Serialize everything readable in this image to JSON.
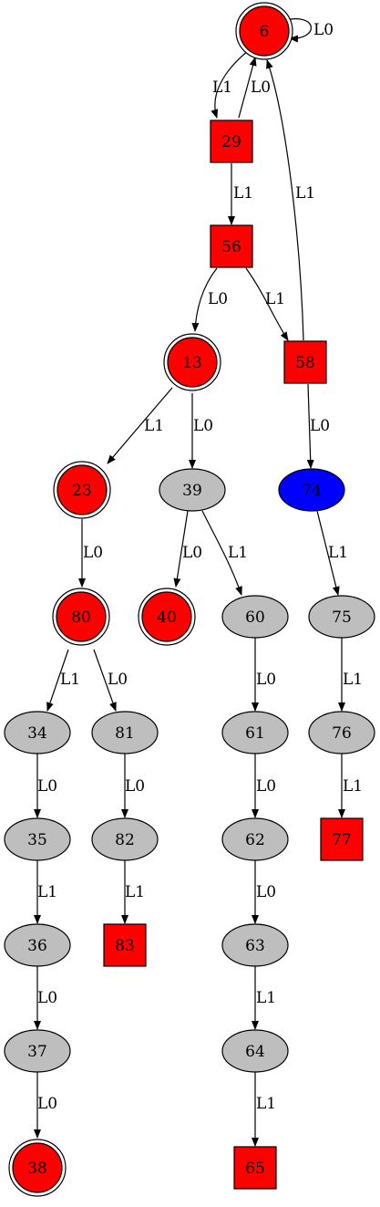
{
  "colors": {
    "red": "#ff0000",
    "blue": "#0000ff",
    "gray": "#bebebe",
    "stroke": "#000000",
    "background": "#ffffff"
  },
  "nodes": [
    {
      "id": "6",
      "label": "6",
      "shape": "doublecircle",
      "fill": "red"
    },
    {
      "id": "29",
      "label": "29",
      "shape": "box",
      "fill": "red"
    },
    {
      "id": "56",
      "label": "56",
      "shape": "box",
      "fill": "red"
    },
    {
      "id": "13",
      "label": "13",
      "shape": "doublecircle",
      "fill": "red"
    },
    {
      "id": "58",
      "label": "58",
      "shape": "box",
      "fill": "red"
    },
    {
      "id": "23",
      "label": "23",
      "shape": "doublecircle",
      "fill": "red"
    },
    {
      "id": "39",
      "label": "39",
      "shape": "ellipse",
      "fill": "gray"
    },
    {
      "id": "74",
      "label": "74",
      "shape": "ellipse",
      "fill": "blue"
    },
    {
      "id": "80",
      "label": "80",
      "shape": "doublecircle",
      "fill": "red"
    },
    {
      "id": "40",
      "label": "40",
      "shape": "doublecircle",
      "fill": "red"
    },
    {
      "id": "60",
      "label": "60",
      "shape": "ellipse",
      "fill": "gray"
    },
    {
      "id": "75",
      "label": "75",
      "shape": "ellipse",
      "fill": "gray"
    },
    {
      "id": "34",
      "label": "34",
      "shape": "ellipse",
      "fill": "gray"
    },
    {
      "id": "81",
      "label": "81",
      "shape": "ellipse",
      "fill": "gray"
    },
    {
      "id": "61",
      "label": "61",
      "shape": "ellipse",
      "fill": "gray"
    },
    {
      "id": "76",
      "label": "76",
      "shape": "ellipse",
      "fill": "gray"
    },
    {
      "id": "35",
      "label": "35",
      "shape": "ellipse",
      "fill": "gray"
    },
    {
      "id": "82",
      "label": "82",
      "shape": "ellipse",
      "fill": "gray"
    },
    {
      "id": "62",
      "label": "62",
      "shape": "ellipse",
      "fill": "gray"
    },
    {
      "id": "77",
      "label": "77",
      "shape": "box",
      "fill": "red"
    },
    {
      "id": "36",
      "label": "36",
      "shape": "ellipse",
      "fill": "gray"
    },
    {
      "id": "83",
      "label": "83",
      "shape": "box",
      "fill": "red"
    },
    {
      "id": "63",
      "label": "63",
      "shape": "ellipse",
      "fill": "gray"
    },
    {
      "id": "37",
      "label": "37",
      "shape": "ellipse",
      "fill": "gray"
    },
    {
      "id": "64",
      "label": "64",
      "shape": "ellipse",
      "fill": "gray"
    },
    {
      "id": "38",
      "label": "38",
      "shape": "doublecircle",
      "fill": "red"
    },
    {
      "id": "65",
      "label": "65",
      "shape": "box",
      "fill": "red"
    }
  ],
  "edges": [
    {
      "from": "6",
      "to": "6",
      "label": "L0"
    },
    {
      "from": "6",
      "to": "29",
      "label": "L1"
    },
    {
      "from": "29",
      "to": "6",
      "label": "L0"
    },
    {
      "from": "29",
      "to": "56",
      "label": "L1"
    },
    {
      "from": "56",
      "to": "13",
      "label": "L0"
    },
    {
      "from": "56",
      "to": "58",
      "label": "L1"
    },
    {
      "from": "58",
      "to": "6",
      "label": "L1"
    },
    {
      "from": "13",
      "to": "23",
      "label": "L1"
    },
    {
      "from": "13",
      "to": "39",
      "label": "L0"
    },
    {
      "from": "58",
      "to": "74",
      "label": "L0"
    },
    {
      "from": "23",
      "to": "80",
      "label": "L0"
    },
    {
      "from": "39",
      "to": "40",
      "label": "L0"
    },
    {
      "from": "39",
      "to": "60",
      "label": "L1"
    },
    {
      "from": "74",
      "to": "75",
      "label": "L1"
    },
    {
      "from": "80",
      "to": "34",
      "label": "L1"
    },
    {
      "from": "80",
      "to": "81",
      "label": "L0"
    },
    {
      "from": "60",
      "to": "61",
      "label": "L0"
    },
    {
      "from": "75",
      "to": "76",
      "label": "L1"
    },
    {
      "from": "34",
      "to": "35",
      "label": "L0"
    },
    {
      "from": "81",
      "to": "82",
      "label": "L0"
    },
    {
      "from": "61",
      "to": "62",
      "label": "L0"
    },
    {
      "from": "76",
      "to": "77",
      "label": "L1"
    },
    {
      "from": "35",
      "to": "36",
      "label": "L1"
    },
    {
      "from": "82",
      "to": "83",
      "label": "L1"
    },
    {
      "from": "62",
      "to": "63",
      "label": "L0"
    },
    {
      "from": "36",
      "to": "37",
      "label": "L0"
    },
    {
      "from": "63",
      "to": "64",
      "label": "L1"
    },
    {
      "from": "37",
      "to": "38",
      "label": "L0"
    },
    {
      "from": "64",
      "to": "65",
      "label": "L1"
    }
  ]
}
